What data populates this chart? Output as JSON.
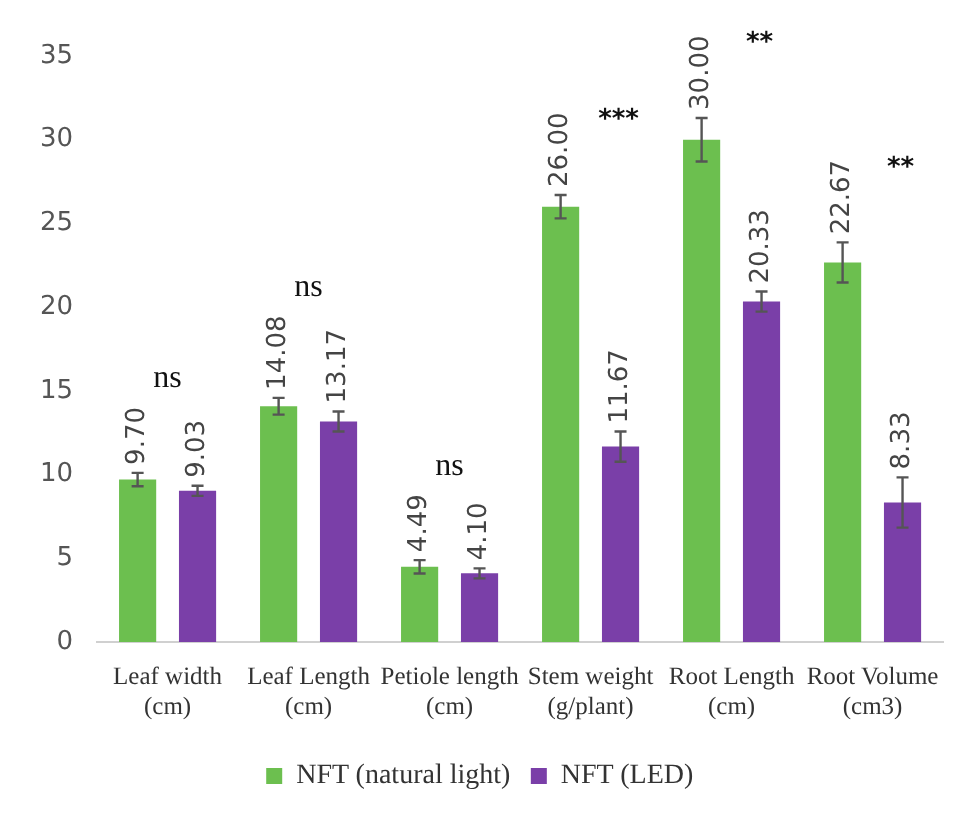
{
  "chart_data": {
    "type": "bar",
    "categories": [
      "Leaf width (cm)",
      "Leaf Length (cm)",
      "Petiole length (cm)",
      "Stem weight (g/plant)",
      "Root Length (cm)",
      "Root Volume (cm3)"
    ],
    "series": [
      {
        "name": "NFT (natural light)",
        "color": "#6cbf4f",
        "values": [
          9.7,
          14.08,
          4.49,
          26.0,
          30.0,
          22.67
        ],
        "errors": [
          0.4,
          0.5,
          0.4,
          0.7,
          1.3,
          1.2
        ],
        "value_labels": [
          "9.70",
          "14.08",
          "4.49",
          "26.00",
          "30.00",
          "22.67"
        ]
      },
      {
        "name": "NFT (LED)",
        "color": "#7a3fa8",
        "values": [
          9.03,
          13.17,
          4.1,
          11.67,
          20.33,
          8.33
        ],
        "errors": [
          0.3,
          0.6,
          0.3,
          0.9,
          0.6,
          1.5
        ],
        "value_labels": [
          "9.03",
          "13.17",
          "4.10",
          "11.67",
          "20.33",
          "8.33"
        ]
      }
    ],
    "ylim": [
      0,
      35
    ],
    "yticks": [
      0,
      5,
      10,
      15,
      20,
      25,
      30,
      35
    ],
    "grid": false,
    "legend": "bottom",
    "annotations": [
      "ns",
      "ns",
      "ns",
      "***",
      "**",
      "**"
    ]
  }
}
